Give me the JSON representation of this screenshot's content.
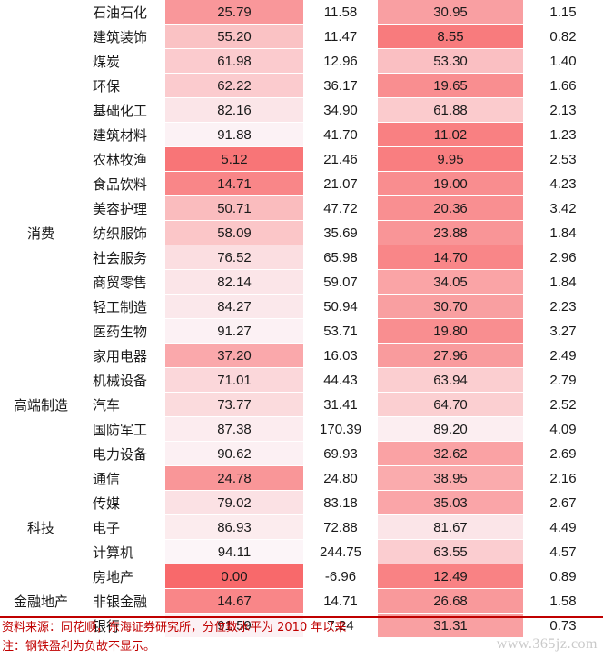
{
  "table": {
    "rows": [
      {
        "group": "",
        "industry": "石油石化",
        "v1": "25.79",
        "v2": "11.58",
        "v3": "30.95",
        "v4": "1.15"
      },
      {
        "group": "",
        "industry": "建筑装饰",
        "v1": "55.20",
        "v2": "11.47",
        "v3": "8.55",
        "v4": "0.82"
      },
      {
        "group": "",
        "industry": "煤炭",
        "v1": "61.98",
        "v2": "12.96",
        "v3": "53.30",
        "v4": "1.40"
      },
      {
        "group": "",
        "industry": "环保",
        "v1": "62.22",
        "v2": "36.17",
        "v3": "19.65",
        "v4": "1.66"
      },
      {
        "group": "",
        "industry": "基础化工",
        "v1": "82.16",
        "v2": "34.90",
        "v3": "61.88",
        "v4": "2.13"
      },
      {
        "group": "",
        "industry": "建筑材料",
        "v1": "91.88",
        "v2": "41.70",
        "v3": "11.02",
        "v4": "1.23"
      },
      {
        "group": "",
        "industry": "农林牧渔",
        "v1": "5.12",
        "v2": "21.46",
        "v3": "9.95",
        "v4": "2.53"
      },
      {
        "group": "",
        "industry": "食品饮料",
        "v1": "14.71",
        "v2": "21.07",
        "v3": "19.00",
        "v4": "4.23"
      },
      {
        "group": "",
        "industry": "美容护理",
        "v1": "50.71",
        "v2": "47.72",
        "v3": "20.36",
        "v4": "3.42"
      },
      {
        "group": "消费",
        "industry": "纺织服饰",
        "v1": "58.09",
        "v2": "35.69",
        "v3": "23.88",
        "v4": "1.84"
      },
      {
        "group": "",
        "industry": "社会服务",
        "v1": "76.52",
        "v2": "65.98",
        "v3": "14.70",
        "v4": "2.96"
      },
      {
        "group": "",
        "industry": "商贸零售",
        "v1": "82.14",
        "v2": "59.07",
        "v3": "34.05",
        "v4": "1.84"
      },
      {
        "group": "",
        "industry": "轻工制造",
        "v1": "84.27",
        "v2": "50.94",
        "v3": "30.70",
        "v4": "2.23"
      },
      {
        "group": "",
        "industry": "医药生物",
        "v1": "91.27",
        "v2": "53.71",
        "v3": "19.80",
        "v4": "3.27"
      },
      {
        "group": "",
        "industry": "家用电器",
        "v1": "37.20",
        "v2": "16.03",
        "v3": "27.96",
        "v4": "2.49"
      },
      {
        "group": "",
        "industry": "机械设备",
        "v1": "71.01",
        "v2": "44.43",
        "v3": "63.94",
        "v4": "2.79"
      },
      {
        "group": "高端制造",
        "industry": "汽车",
        "v1": "73.77",
        "v2": "31.41",
        "v3": "64.70",
        "v4": "2.52"
      },
      {
        "group": "",
        "industry": "国防军工",
        "v1": "87.38",
        "v2": "170.39",
        "v3": "89.20",
        "v4": "4.09"
      },
      {
        "group": "",
        "industry": "电力设备",
        "v1": "90.62",
        "v2": "69.93",
        "v3": "32.62",
        "v4": "2.69"
      },
      {
        "group": "",
        "industry": "通信",
        "v1": "24.78",
        "v2": "24.80",
        "v3": "38.95",
        "v4": "2.16"
      },
      {
        "group": "",
        "industry": "传媒",
        "v1": "79.02",
        "v2": "83.18",
        "v3": "35.03",
        "v4": "2.67"
      },
      {
        "group": "科技",
        "industry": "电子",
        "v1": "86.93",
        "v2": "72.88",
        "v3": "81.67",
        "v4": "4.49"
      },
      {
        "group": "",
        "industry": "计算机",
        "v1": "94.11",
        "v2": "244.75",
        "v3": "63.55",
        "v4": "4.57"
      },
      {
        "group": "",
        "industry": "房地产",
        "v1": "0.00",
        "v2": "-6.96",
        "v3": "12.49",
        "v4": "0.89"
      },
      {
        "group": "金融地产",
        "industry": "非银金融",
        "v1": "14.67",
        "v2": "14.71",
        "v3": "26.68",
        "v4": "1.58"
      },
      {
        "group": "",
        "industry": "银行",
        "v1": "91.59",
        "v2": "7.24",
        "v3": "31.31",
        "v4": "0.73"
      }
    ]
  },
  "colors": {
    "percentile_low": "#f8696b",
    "percentile_high": "#fcfcff",
    "note_text": "#c00000"
  },
  "notes": {
    "source": "资料来源：同花顺，东海证券研究所，分位数水平为 2010 年以来",
    "remark": "注：钢铁盈利为负故不显示。"
  },
  "watermark": "www.365jz.com"
}
